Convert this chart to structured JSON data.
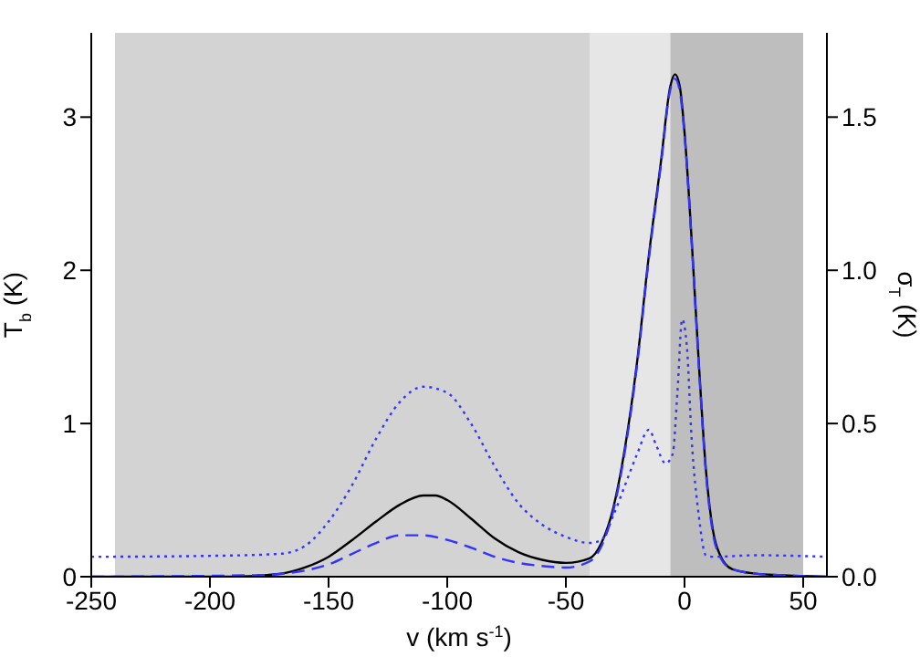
{
  "chart_data": {
    "type": "line",
    "xlabel": "v (km s$^{-1}$)",
    "ylabel": "T$_{b}$ (K)",
    "y2label": "σ$_{T}$ (K)",
    "xlim": [
      -250,
      60
    ],
    "xticks": [
      -250,
      -200,
      -150,
      -100,
      -50,
      0,
      50
    ],
    "ylim": [
      0,
      3.55
    ],
    "yticks": [
      0,
      1,
      2,
      3
    ],
    "y2lim": [
      0,
      1.775
    ],
    "y2ticks": [
      {
        "value": 0,
        "label": "0.0"
      },
      {
        "value": 0.5,
        "label": "0.5"
      },
      {
        "value": 1,
        "label": "1.0"
      },
      {
        "value": 1.5,
        "label": "1.5"
      }
    ],
    "bands": [
      {
        "axis": "x",
        "from": -240,
        "to": -40,
        "color": "#d3d3d3"
      },
      {
        "axis": "x",
        "from": -40,
        "to": -6,
        "color": "#e6e6e6"
      },
      {
        "axis": "x",
        "from": -6,
        "to": 50,
        "color": "#bebebe"
      }
    ],
    "grid": false,
    "legend": false,
    "marker": "none",
    "series": [
      {
        "color": "#000000",
        "line_style": "solid",
        "x": [
          -250,
          -190,
          -170,
          -160,
          -150,
          -140,
          -130,
          -120,
          -110,
          -105,
          -100,
          -90,
          -80,
          -70,
          -60,
          -50,
          -40,
          -35,
          -30,
          -25,
          -20,
          -15,
          -10,
          -6,
          -4,
          -2,
          0,
          3,
          6,
          9,
          12,
          15,
          20,
          30,
          40,
          60
        ],
        "values": [
          0,
          0,
          0.02,
          0.06,
          0.13,
          0.24,
          0.36,
          0.47,
          0.53,
          0.53,
          0.5,
          0.38,
          0.25,
          0.16,
          0.11,
          0.09,
          0.12,
          0.22,
          0.45,
          0.85,
          1.4,
          2.1,
          2.7,
          3.2,
          3.28,
          3.2,
          2.9,
          2.2,
          1.4,
          0.7,
          0.3,
          0.14,
          0.05,
          0.02,
          0.01,
          0
        ]
      },
      {
        "color": "#3333ff",
        "line_style": "dashed",
        "x": [
          -250,
          -180,
          -160,
          -150,
          -140,
          -130,
          -120,
          -110,
          -100,
          -90,
          -80,
          -70,
          -60,
          -50,
          -40,
          -35,
          -30,
          -25,
          -20,
          -15,
          -10,
          -6,
          -4,
          -2,
          0,
          3,
          6,
          9,
          12,
          15,
          20,
          30,
          40,
          60
        ],
        "values": [
          0,
          0.01,
          0.04,
          0.08,
          0.15,
          0.22,
          0.27,
          0.27,
          0.24,
          0.19,
          0.13,
          0.09,
          0.07,
          0.06,
          0.1,
          0.2,
          0.43,
          0.83,
          1.38,
          2.08,
          2.68,
          3.18,
          3.25,
          3.17,
          2.88,
          2.18,
          1.38,
          0.68,
          0.28,
          0.13,
          0.05,
          0.02,
          0.01,
          0
        ]
      },
      {
        "color": "#3333ff",
        "line_style": "dotted",
        "axis": "y2",
        "x": [
          -250,
          -200,
          -170,
          -160,
          -150,
          -140,
          -130,
          -120,
          -110,
          -100,
          -90,
          -80,
          -70,
          -60,
          -50,
          -40,
          -35,
          -30,
          -25,
          -20,
          -15,
          -12,
          -8,
          -5,
          -3,
          -1,
          1,
          3,
          6,
          9,
          12,
          30,
          60
        ],
        "values": [
          0.065,
          0.068,
          0.075,
          0.1,
          0.18,
          0.3,
          0.45,
          0.57,
          0.62,
          0.6,
          0.5,
          0.36,
          0.24,
          0.17,
          0.13,
          0.11,
          0.12,
          0.2,
          0.3,
          0.4,
          0.48,
          0.43,
          0.37,
          0.4,
          0.6,
          0.84,
          0.75,
          0.45,
          0.2,
          0.07,
          0.065,
          0.07,
          0.065
        ]
      }
    ]
  }
}
